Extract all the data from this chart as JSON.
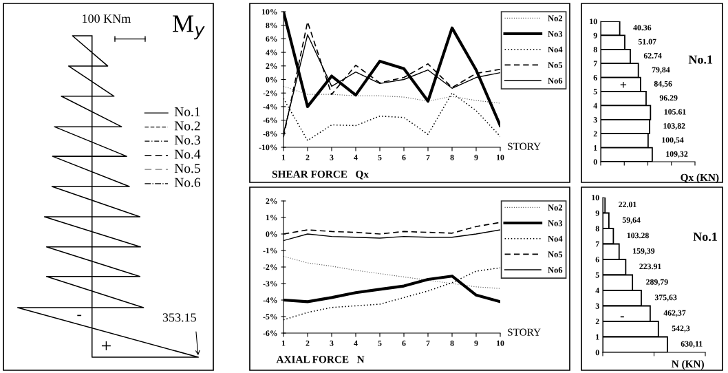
{
  "chart_data": [
    {
      "type": "other",
      "title": "M$_{y}$",
      "annotations": [
        "100 KNm",
        "-",
        "+",
        "353.15",
        "No.1",
        "No.2",
        "No.3",
        "No.4",
        "No.5",
        "No.6"
      ]
    },
    {
      "type": "line",
      "xlabel": "SHEAR FORCE   Qx",
      "legend": "top right",
      "annotations": [
        "STORY"
      ],
      "x": [
        1,
        2,
        3,
        4,
        5,
        6,
        7,
        8,
        9,
        10
      ],
      "xlim": [
        1,
        10
      ],
      "xticks": [
        1,
        2,
        3,
        4,
        5,
        6,
        7,
        8,
        9,
        10
      ],
      "ylim": [
        -10,
        10
      ],
      "yticks": [
        {
          "value": -10,
          "label": "-10%"
        },
        {
          "value": -8,
          "label": "-8%"
        },
        {
          "value": -6,
          "label": "-6%"
        },
        {
          "value": -4,
          "label": "-4%"
        },
        {
          "value": -2,
          "label": "-2%"
        },
        {
          "value": 0,
          "label": "0%"
        },
        {
          "value": 2,
          "label": "2%"
        },
        {
          "value": 4,
          "label": "4%"
        },
        {
          "value": 6,
          "label": "6%"
        },
        {
          "value": 8,
          "label": "8%"
        },
        {
          "value": 10,
          "label": "10%"
        }
      ],
      "series": [
        {
          "name": "No2",
          "color": "#555555",
          "line_style": "dotted",
          "values": [
            -1.0,
            -2.2,
            -2.2,
            -2.4,
            -2.4,
            -2.6,
            -3.2,
            -2.5,
            -3.1,
            -3.5
          ]
        },
        {
          "name": "No3",
          "color": "#000000",
          "line_style": "solid",
          "values": [
            10,
            -4.0,
            0.5,
            -2.3,
            2.7,
            1.6,
            -3.2,
            7.6,
            1.4,
            -6.8
          ]
        },
        {
          "name": "No4",
          "color": "#000000",
          "line_style": "dotted",
          "values": [
            -2.8,
            -9.0,
            -6.7,
            -6.8,
            -5.4,
            -5.6,
            -8.1,
            -2.0,
            -4.6,
            -8.4
          ]
        },
        {
          "name": "No5",
          "color": "#000000",
          "line_style": "dashed",
          "values": [
            -8.5,
            8.5,
            -2.2,
            2.1,
            -0.5,
            0.3,
            2.3,
            -1.2,
            0.9,
            1.5
          ]
        },
        {
          "name": "No6",
          "color": "#000000",
          "line_style": "solid",
          "values": [
            -8.0,
            6.6,
            -1.0,
            1.1,
            -0.6,
            0.0,
            1.4,
            -1.3,
            0.3,
            1.0
          ]
        }
      ]
    },
    {
      "type": "line",
      "xlabel": "AXIAL FORCE   N",
      "legend": "top right",
      "annotations": [
        "STORY"
      ],
      "x": [
        1,
        2,
        3,
        4,
        5,
        6,
        7,
        8,
        9,
        10
      ],
      "xlim": [
        1,
        10
      ],
      "xticks": [
        1,
        2,
        3,
        4,
        5,
        6,
        7,
        8,
        9,
        10
      ],
      "ylim": [
        -6,
        2
      ],
      "yticks": [
        {
          "value": -6,
          "label": "-6%"
        },
        {
          "value": -5,
          "label": "-5%"
        },
        {
          "value": -4,
          "label": "-4%"
        },
        {
          "value": -3,
          "label": "-3%"
        },
        {
          "value": -2,
          "label": "-2%"
        },
        {
          "value": -1,
          "label": "-1%"
        },
        {
          "value": 0,
          "label": "0%"
        },
        {
          "value": 1,
          "label": "1%"
        },
        {
          "value": 2,
          "label": "2%"
        }
      ],
      "series": [
        {
          "name": "No2",
          "color": "#555555",
          "line_style": "dotted",
          "values": [
            -1.35,
            -1.75,
            -1.95,
            -2.2,
            -2.4,
            -2.6,
            -2.8,
            -3.0,
            -3.2,
            -3.3
          ]
        },
        {
          "name": "No3",
          "color": "#000000",
          "line_style": "solid",
          "values": [
            -4.0,
            -4.1,
            -3.85,
            -3.55,
            -3.35,
            -3.15,
            -2.75,
            -2.55,
            -3.7,
            -4.1
          ]
        },
        {
          "name": "No4",
          "color": "#000000",
          "line_style": "dotted",
          "values": [
            -5.2,
            -4.75,
            -4.45,
            -4.35,
            -4.25,
            -3.85,
            -3.45,
            -2.95,
            -2.25,
            -2.05
          ]
        },
        {
          "name": "No5",
          "color": "#000000",
          "line_style": "dashed",
          "values": [
            0.0,
            0.25,
            0.15,
            0.1,
            0.0,
            0.15,
            0.1,
            0.05,
            0.45,
            0.7
          ]
        },
        {
          "name": "No6",
          "color": "#000000",
          "line_style": "solid",
          "values": [
            -0.4,
            0.0,
            -0.15,
            -0.2,
            -0.25,
            -0.15,
            -0.2,
            -0.2,
            0.0,
            0.25
          ]
        }
      ]
    },
    {
      "type": "bar",
      "orientation": "horizontal",
      "xlabel": "Qx (KN)",
      "annotations": [
        "No.1",
        "+"
      ],
      "color": "#ffffff",
      "x": [
        9.5,
        8.5,
        7.5,
        6.5,
        5.5,
        4.5,
        3.5,
        2.5,
        1.5,
        0.5
      ],
      "values": [
        40.36,
        51.07,
        62.74,
        79.84,
        84.56,
        96.29,
        105.61,
        103.82,
        100.54,
        109.32
      ],
      "value_labels": [
        "40.36",
        "51.07",
        "62.74",
        "79,84",
        "84,56",
        "96.29",
        "105.61",
        "103,82",
        "100,54",
        "109,32"
      ],
      "xlim": [
        0,
        200
      ],
      "xticks": [
        {
          "value": 0,
          "label": null
        },
        {
          "value": 50,
          "label": null
        },
        {
          "value": 100,
          "label": null
        },
        {
          "value": 150,
          "label": null
        },
        {
          "value": 200,
          "label": null
        }
      ],
      "ylim": [
        0,
        10
      ],
      "yticks": [
        0,
        1,
        2,
        3,
        4,
        5,
        6,
        7,
        8,
        9,
        10
      ]
    },
    {
      "type": "bar",
      "orientation": "horizontal",
      "xlabel": "N (KN)",
      "annotations": [
        "No.1",
        "-"
      ],
      "color": "#ffffff",
      "x": [
        9.5,
        8.5,
        7.5,
        6.5,
        5.5,
        4.5,
        3.5,
        2.5,
        1.5,
        0.5
      ],
      "values": [
        22.01,
        59.64,
        103.28,
        159.39,
        223.91,
        289.79,
        375.63,
        462.37,
        542.3,
        630.11
      ],
      "value_labels": [
        "22.01",
        "59,64",
        "103.28",
        "159,39",
        "223.91",
        "289,79",
        "375,63",
        "462,37",
        "542,3",
        "630,11"
      ],
      "xlim": [
        0,
        1000
      ],
      "xticks": [
        {
          "value": 0,
          "label": null
        },
        {
          "value": 500,
          "label": null
        },
        {
          "value": 1000,
          "label": null
        }
      ],
      "ylim": [
        0,
        10
      ],
      "yticks": [
        0,
        1,
        2,
        3,
        4,
        5,
        6,
        7,
        8,
        9,
        10
      ]
    }
  ]
}
